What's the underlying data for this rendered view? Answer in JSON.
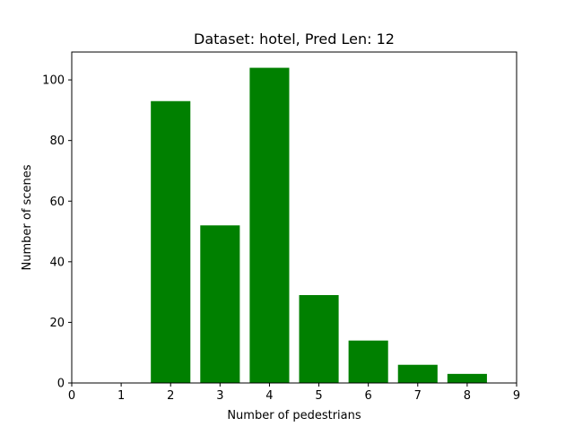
{
  "chart_data": {
    "type": "bar",
    "title": "Dataset: hotel, Pred Len: 12",
    "xlabel": "Number of pedestrians",
    "ylabel": "Number of scenes",
    "x": [
      2,
      3,
      4,
      5,
      6,
      7,
      8
    ],
    "values": [
      93,
      52,
      104,
      29,
      14,
      6,
      3
    ],
    "xlim": [
      0,
      9
    ],
    "ylim": [
      0,
      109.2
    ],
    "xticks": [
      "0",
      "1",
      "2",
      "3",
      "4",
      "5",
      "6",
      "7",
      "8",
      "9"
    ],
    "yticks": [
      "0",
      "20",
      "40",
      "60",
      "80",
      "100"
    ],
    "grid": false,
    "legend": "none",
    "bar_color": "#008000"
  }
}
